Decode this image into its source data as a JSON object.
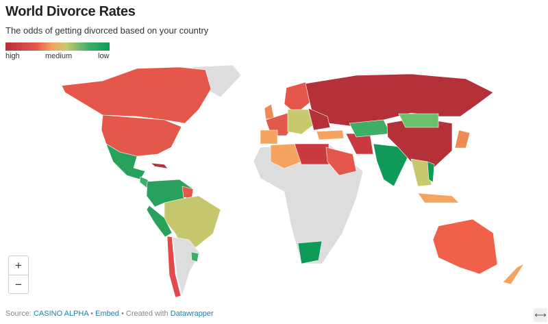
{
  "header": {
    "title": "World Divorce Rates",
    "subtitle": "The odds of getting divorced based on your country"
  },
  "legend": {
    "labels": [
      "high",
      "medium",
      "low"
    ]
  },
  "controls": {
    "zoom_in": "+",
    "zoom_out": "−",
    "fullscreen": "⟷"
  },
  "footer": {
    "source_label": "Source:",
    "source": "CASINO ALPHA",
    "separator": "•",
    "embed": "Embed",
    "created_with": "Created with",
    "tool": "Datawrapper"
  }
}
